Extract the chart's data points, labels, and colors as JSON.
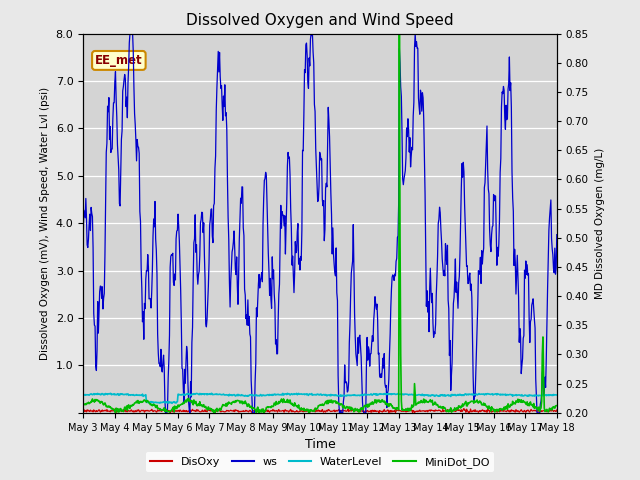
{
  "title": "Dissolved Oxygen and Wind Speed",
  "ylabel_left": "Dissolved Oxygen (mV), Wind Speed, Water Lvl (psi)",
  "ylabel_right": "MD Dissolved Oxygen (mg/L)",
  "xlabel": "Time",
  "annotation": "EE_met",
  "ylim_left": [
    0.0,
    8.0
  ],
  "ylim_right": [
    0.2,
    0.85
  ],
  "yticks_left": [
    0.0,
    1.0,
    2.0,
    3.0,
    4.0,
    5.0,
    6.0,
    7.0,
    8.0
  ],
  "yticks_right": [
    0.2,
    0.25,
    0.3,
    0.35,
    0.4,
    0.45,
    0.5,
    0.55,
    0.6,
    0.65,
    0.7,
    0.75,
    0.8,
    0.85
  ],
  "xtick_labels": [
    "May 3",
    "May 4",
    "May 5",
    "May 6",
    "May 7",
    "May 8",
    "May 9",
    "May 10",
    "May 11",
    "May 12",
    "May 13",
    "May 14",
    "May 15",
    "May 16",
    "May 17",
    "May 18"
  ],
  "colors": {
    "DisOxy": "#cc0000",
    "ws": "#0000cc",
    "WaterLevel": "#00bbcc",
    "MiniDot_DO": "#00bb00"
  },
  "legend_labels": [
    "DisOxy",
    "ws",
    "WaterLevel",
    "MiniDot_DO"
  ],
  "fig_facecolor": "#e8e8e8",
  "plot_facecolor": "#d4d4d4",
  "annotation_bg": "#ffffcc",
  "annotation_border": "#cc8800",
  "annotation_color": "#880000"
}
